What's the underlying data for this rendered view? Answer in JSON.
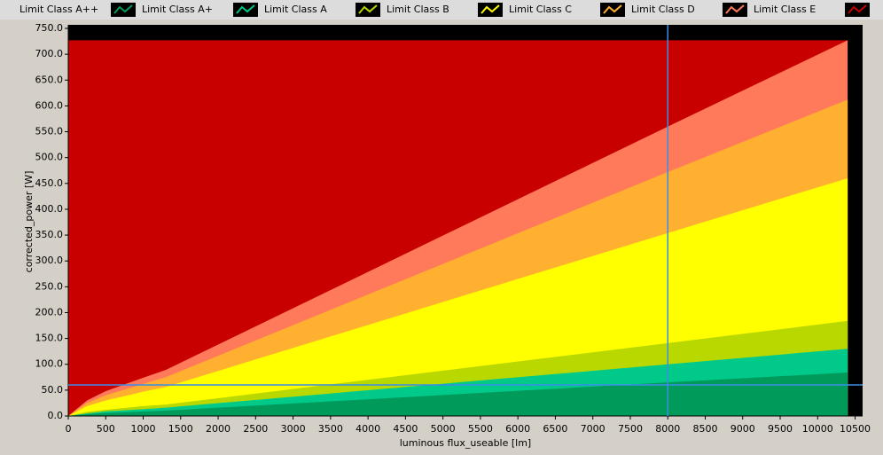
{
  "chart_data": {
    "type": "area",
    "xlabel": "luminous flux_useable [lm]",
    "ylabel": "corrected_power [W]",
    "x": [
      0,
      250,
      500,
      1000,
      1300,
      8000,
      10400
    ],
    "series": [
      {
        "name": "Limit Class A++",
        "color": "#009a5a",
        "values": [
          0,
          3.5,
          5.6,
          8.6,
          10.3,
          65,
          84
        ]
      },
      {
        "name": "Limit Class A+",
        "color": "#00c98a",
        "values": [
          0,
          5,
          9,
          13,
          16,
          100,
          130
        ]
      },
      {
        "name": "Limit Class A",
        "color": "#b8d800",
        "values": [
          0,
          8,
          12,
          19,
          22,
          141,
          184
        ]
      },
      {
        "name": "Limit Class B",
        "color": "#ffff00",
        "values": [
          0,
          19,
          30,
          47,
          56,
          354,
          460
        ]
      },
      {
        "name": "Limit Class C",
        "color": "#ffb030",
        "values": [
          0,
          25,
          40,
          62,
          75,
          472,
          612
        ]
      },
      {
        "name": "Limit Class D",
        "color": "#ff7a5a",
        "values": [
          0,
          30,
          48,
          74,
          89,
          560,
          727
        ]
      },
      {
        "name": "Limit Class E",
        "color": "#c80000",
        "values": [
          727,
          727,
          727,
          727,
          727,
          727,
          727
        ]
      }
    ],
    "xlim": [
      0,
      10600
    ],
    "ylim": [
      0,
      750
    ],
    "xticks": [
      0,
      500,
      1000,
      1500,
      2000,
      2500,
      3000,
      3500,
      4000,
      4500,
      5000,
      5500,
      6000,
      6500,
      7000,
      7500,
      8000,
      8500,
      9000,
      9500,
      10000,
      10500
    ],
    "yticks": [
      {
        "value": 0,
        "label": "0.0"
      },
      {
        "value": 50,
        "label": "50.0"
      },
      {
        "value": 100,
        "label": "100.0"
      },
      {
        "value": 150,
        "label": "150.0"
      },
      {
        "value": 200,
        "label": "200.0"
      },
      {
        "value": 250,
        "label": "250.0"
      },
      {
        "value": 300,
        "label": "300.0"
      },
      {
        "value": 350,
        "label": "350.0"
      },
      {
        "value": 400,
        "label": "400.0"
      },
      {
        "value": 450,
        "label": "450.0"
      },
      {
        "value": 500,
        "label": "500.0"
      },
      {
        "value": 550,
        "label": "550.0"
      },
      {
        "value": 600,
        "label": "600.0"
      },
      {
        "value": 650,
        "label": "650.0"
      },
      {
        "value": 700,
        "label": "700.0"
      },
      {
        "value": 750,
        "label": "750.0"
      }
    ],
    "cursor": {
      "x": 8000,
      "y": 60,
      "color": "#3a8ee6"
    },
    "background": "#000000"
  }
}
